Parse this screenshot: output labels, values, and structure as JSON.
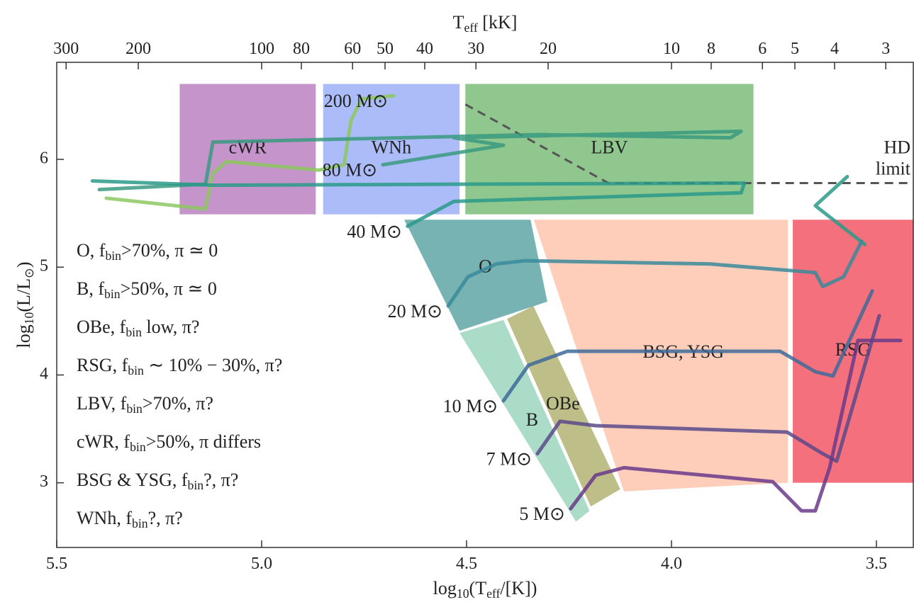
{
  "chart_data": {
    "type": "hrd",
    "xlabel": [
      "log",
      "10",
      "(T",
      "eff",
      "/[K])"
    ],
    "ylabel": [
      "log",
      "10",
      "(L/L",
      "⊙",
      ")"
    ],
    "x2label": [
      "T",
      "eff",
      " [kK]"
    ],
    "xlim": [
      5.5,
      3.41
    ],
    "ylim": [
      2.4,
      6.9
    ],
    "xticks": [
      5.5,
      {
        "value": 5,
        "label": "5.0"
      },
      4.5,
      {
        "value": 4,
        "label": "4.0"
      },
      3.5
    ],
    "yticks": [
      3,
      4,
      5,
      6
    ],
    "x2ticks": [
      300,
      200,
      100,
      80,
      60,
      50,
      40,
      30,
      20,
      10,
      8,
      6,
      5,
      4,
      3
    ],
    "regions": [
      {
        "name": "cWR",
        "color": "#b070b8",
        "label_color": "#7a2a8a",
        "x": [
          5.2,
          4.868,
          4.868,
          5.2
        ],
        "values": [
          6.7,
          6.7,
          5.49,
          5.49
        ]
      },
      {
        "name": "WNh",
        "color": "#8fa6f5",
        "label_color": "#5a7aee",
        "x": [
          4.85,
          4.517,
          4.517,
          4.85
        ],
        "values": [
          6.7,
          6.7,
          5.49,
          5.49
        ]
      },
      {
        "name": "LBV",
        "color": "#6ab46a",
        "label_color": "#2a7a2a",
        "x": [
          4.503,
          3.8,
          3.8,
          4.503
        ],
        "values": [
          6.7,
          6.7,
          5.49,
          5.49
        ]
      },
      {
        "name": "O",
        "color": "#4a9a9a",
        "label_color": "#1a6a6a",
        "x": [
          4.652,
          4.344,
          4.303,
          4.517
        ],
        "values": [
          5.44,
          5.44,
          4.68,
          4.41
        ]
      },
      {
        "name": "B",
        "color": "#8ed0b4",
        "label_color": "#3aa07a",
        "x": [
          4.517,
          4.41,
          4.2,
          4.233
        ],
        "values": [
          4.39,
          4.51,
          2.74,
          2.64
        ]
      },
      {
        "name": "OBe",
        "color": "#a8a860",
        "label_color": "#7a7a10",
        "x": [
          4.401,
          4.337,
          4.125,
          4.197
        ],
        "values": [
          4.52,
          4.64,
          2.94,
          2.78
        ]
      },
      {
        "name": "BSG, YSG",
        "color": "#fdbda4",
        "label_color": "#f07a50",
        "x": [
          4.336,
          3.716,
          3.716,
          4.116
        ],
        "values": [
          5.44,
          5.44,
          3.0,
          2.92
        ]
      },
      {
        "name": "RSG",
        "color": "#f04050",
        "label_color": "#c0101a",
        "x": [
          3.704,
          3.41,
          3.41,
          3.704
        ],
        "values": [
          5.44,
          5.44,
          3.0,
          3.0
        ]
      }
    ],
    "hd_limit": {
      "label": [
        "HD",
        "limit"
      ],
      "color": "#555555",
      "x": [
        4.503,
        4.154,
        3.41
      ],
      "values": [
        6.51,
        5.78,
        5.78
      ]
    },
    "series": [
      {
        "name": "200 M⊙",
        "color": "#8cc860",
        "x": [
          4.678,
          4.756,
          4.782,
          4.799,
          4.86,
          5.085,
          5.119,
          5.137,
          5.379
        ],
        "values": [
          6.59,
          6.56,
          6.36,
          5.95,
          5.9,
          5.98,
          5.87,
          5.54,
          5.64
        ]
      },
      {
        "name": "80 M⊙",
        "color": "#3a9a80",
        "x": [
          4.704,
          4.41,
          4.531,
          3.83,
          3.856,
          4.324,
          5.119,
          5.137,
          5.396
        ],
        "values": [
          5.95,
          6.13,
          6.2,
          6.26,
          6.2,
          6.23,
          6.16,
          5.77,
          5.72
        ]
      },
      {
        "name": "40 M⊙",
        "color": "#2a9a8a",
        "x": [
          4.644,
          4.531,
          3.83,
          3.822,
          5.119,
          5.413,
          null,
          3.571,
          3.649,
          3.528
        ],
        "values": [
          5.38,
          5.61,
          5.69,
          5.78,
          5.76,
          5.8,
          null,
          5.84,
          5.57,
          5.21
        ]
      },
      {
        "name": "20 M⊙",
        "color": "#3a8a9a",
        "x": [
          4.545,
          4.497,
          4.427,
          4.358,
          3.908,
          3.649,
          3.631,
          3.58,
          3.536
        ],
        "values": [
          4.64,
          4.91,
          5.03,
          5.06,
          5.03,
          4.95,
          4.82,
          4.91,
          5.24
        ]
      },
      {
        "name": "10 M⊙",
        "color": "#3e6a9a",
        "x": [
          4.41,
          4.349,
          4.254,
          3.735,
          3.649,
          3.606,
          3.51
        ],
        "values": [
          3.76,
          4.09,
          4.22,
          4.22,
          4.03,
          3.99,
          4.78
        ]
      },
      {
        "name": "7 M⊙",
        "color": "#5a4a8a",
        "x": [
          4.327,
          4.272,
          4.185,
          3.718,
          3.631,
          3.597,
          3.493
        ],
        "values": [
          3.27,
          3.57,
          3.53,
          3.47,
          3.27,
          3.2,
          4.55
        ]
      },
      {
        "name": "5 M⊙",
        "color": "#6a3a8a",
        "x": [
          4.246,
          4.185,
          4.116,
          3.753,
          3.683,
          3.649,
          3.614,
          3.545,
          3.441
        ],
        "values": [
          2.76,
          3.07,
          3.14,
          3.01,
          2.74,
          2.74,
          3.14,
          4.32,
          4.32
        ]
      }
    ],
    "legend": [
      {
        "label": [
          "O, f",
          "bin",
          ">70%, π ≃ 0"
        ],
        "color": "#2a9090"
      },
      {
        "label": [
          "B, f",
          "bin",
          ">50%, π ≃ 0"
        ],
        "color": "#5abf8a"
      },
      {
        "label": [
          "OBe, f",
          "bin",
          " low, π?"
        ],
        "color": "#8a8a20"
      },
      {
        "label": [
          "RSG, f",
          "bin",
          " ∼ 10% − 30%, π?"
        ],
        "color": "#e8253a"
      },
      {
        "label": [
          "LBV, f",
          "bin",
          ">70%, π?"
        ],
        "color": "#3a9a3a"
      },
      {
        "label": [
          "cWR, f",
          "bin",
          ">50%, π differs"
        ],
        "color": "#8a3a9a"
      },
      {
        "label": [
          "BSG & YSG, f",
          "bin",
          "?, π?"
        ],
        "color": "#f08a6a"
      },
      {
        "label": [
          "WNh, f",
          "bin",
          "?, π?"
        ],
        "color": "#5a7aee"
      }
    ]
  }
}
